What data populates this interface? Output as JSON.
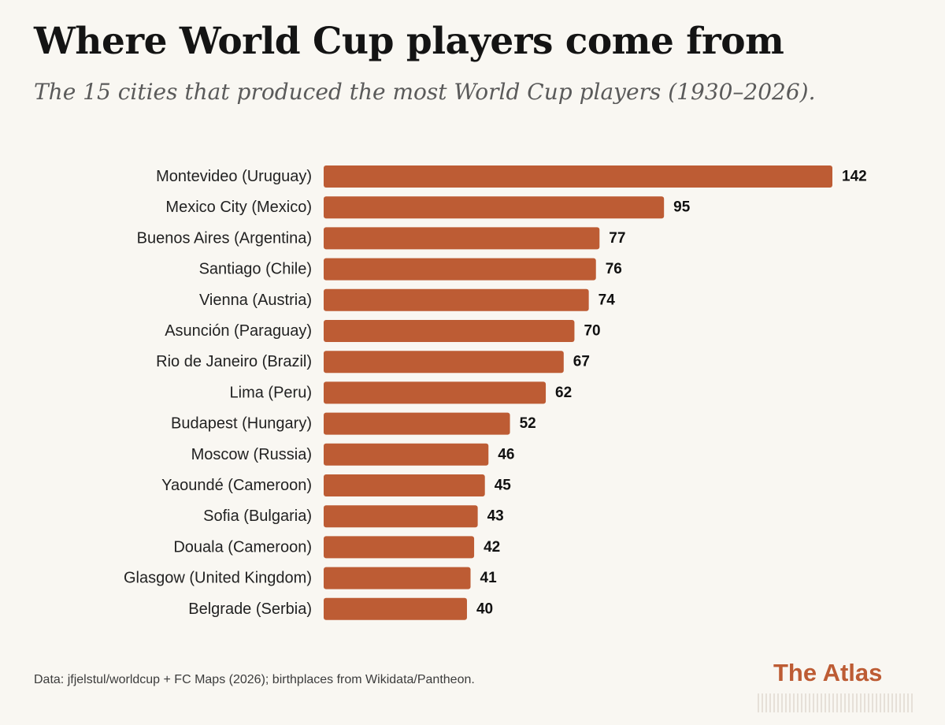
{
  "header": {
    "title": "Where World Cup players come from",
    "subtitle": "The 15 cities that produced the most World Cup players (1930–2026)."
  },
  "chart_data": {
    "type": "bar",
    "orientation": "horizontal",
    "title": "",
    "xlabel": "",
    "ylabel": "",
    "xlim": [
      0,
      142
    ],
    "grid": false,
    "legend": "none",
    "bar_color": "#bd5c34",
    "categories": [
      "Montevideo (Uruguay)",
      "Mexico City (Mexico)",
      "Buenos Aires (Argentina)",
      "Santiago (Chile)",
      "Vienna (Austria)",
      "Asunción (Paraguay)",
      "Rio de Janeiro (Brazil)",
      "Lima (Peru)",
      "Budapest (Hungary)",
      "Moscow (Russia)",
      "Yaoundé (Cameroon)",
      "Sofia (Bulgaria)",
      "Douala (Cameroon)",
      "Glasgow (United Kingdom)",
      "Belgrade (Serbia)"
    ],
    "values": [
      142,
      95,
      77,
      76,
      74,
      70,
      67,
      62,
      52,
      46,
      45,
      43,
      42,
      41,
      40
    ]
  },
  "footer": {
    "source": "Data: jfjelstul/worldcup + FC Maps (2026); birthplaces from Wikidata/Pantheon.",
    "brand": "The Atlas"
  },
  "colors": {
    "background": "#f9f7f2",
    "accent": "#bd5c34"
  }
}
